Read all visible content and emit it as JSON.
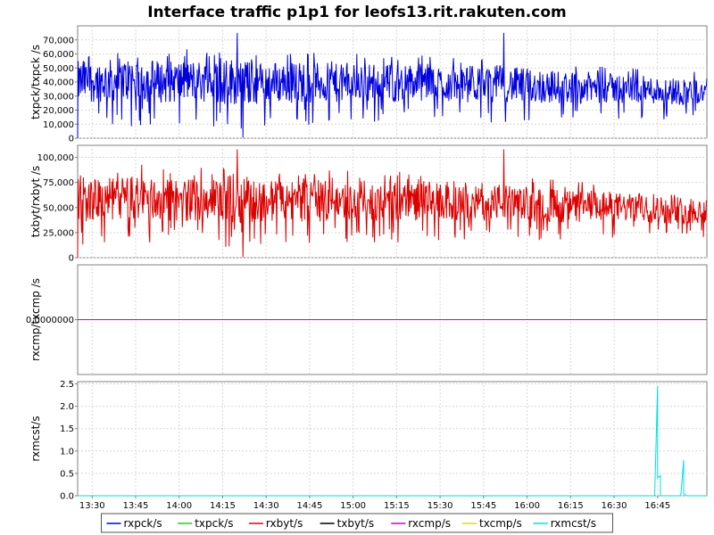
{
  "chart_data": {
    "type": "line",
    "title": "Interface traffic p1p1 for leofs13.rit.rakuten.com",
    "x_range": [
      "13:25",
      "17:02"
    ],
    "x_ticks": [
      "13:30",
      "13:45",
      "14:00",
      "14:15",
      "14:30",
      "14:45",
      "15:00",
      "15:15",
      "15:30",
      "15:45",
      "16:00",
      "16:15",
      "16:30",
      "16:45"
    ],
    "grid": true,
    "legend_position": "bottom-center",
    "legend": [
      {
        "name": "rxpck/s",
        "color": "#0000dd"
      },
      {
        "name": "txpck/s",
        "color": "#22cc22"
      },
      {
        "name": "rxbyt/s",
        "color": "#dd0000"
      },
      {
        "name": "txbyt/s",
        "color": "#000000"
      },
      {
        "name": "rxcmp/s",
        "color": "#cc00cc"
      },
      {
        "name": "txcmp/s",
        "color": "#dddd00"
      },
      {
        "name": "rxmcst/s",
        "color": "#00dddd"
      }
    ],
    "panels": [
      {
        "ylabel": "txpck/txpck /s",
        "ylim": [
          0,
          80000
        ],
        "y_ticks": [
          0,
          10000,
          20000,
          30000,
          40000,
          50000,
          60000,
          70000
        ],
        "y_tick_labels": [
          "0",
          "10,000",
          "20,000",
          "30,000",
          "40,000",
          "50,000",
          "60,000",
          "70,000"
        ],
        "series": [
          {
            "name": "rxpck/s",
            "color": "#0000dd",
            "x": [
              "13:25",
              "13:35",
              "13:45",
              "13:55",
              "14:05",
              "14:15",
              "14:20",
              "14:25",
              "14:35",
              "14:45",
              "14:55",
              "15:05",
              "15:15",
              "15:25",
              "15:35",
              "15:45",
              "15:50",
              "15:55",
              "16:05",
              "16:15",
              "16:25",
              "16:35",
              "16:45",
              "16:55",
              "17:02"
            ],
            "mean": [
              40000,
              41000,
              42000,
              40000,
              41000,
              40000,
              41000,
              39000,
              40000,
              40000,
              39000,
              40000,
              39000,
              40000,
              38000,
              38000,
              39000,
              38000,
              37000,
              36000,
              36000,
              35000,
              34000,
              33000,
              33000
            ],
            "amp": [
              12000,
              12000,
              13000,
              12000,
              12000,
              13000,
              14000,
              12000,
              12000,
              12000,
              11000,
              11000,
              11000,
              11000,
              10000,
              10000,
              11000,
              10000,
              10000,
              9000,
              9000,
              8000,
              8000,
              8000,
              8000
            ],
            "peaks": [
              [
                "13:25",
                0
              ],
              [
                "13:27",
                55000
              ],
              [
                "14:20",
                75000
              ],
              [
                "14:22",
                500
              ],
              [
                "15:52",
                75000
              ],
              [
                "13:37",
                10000
              ]
            ]
          }
        ]
      },
      {
        "ylabel": "txbyt/rxbyt /s",
        "ylim": [
          0,
          112000
        ],
        "y_ticks": [
          0,
          25000,
          50000,
          75000,
          100000
        ],
        "y_tick_labels": [
          "0",
          "25,000",
          "50,000",
          "75,000",
          "100,000"
        ],
        "series": [
          {
            "name": "rxbyt/s",
            "color": "#dd0000",
            "x": [
              "13:25",
              "13:35",
              "13:45",
              "13:55",
              "14:05",
              "14:15",
              "14:20",
              "14:25",
              "14:35",
              "14:45",
              "14:55",
              "15:05",
              "15:15",
              "15:25",
              "15:35",
              "15:45",
              "15:50",
              "15:55",
              "16:05",
              "16:15",
              "16:25",
              "16:35",
              "16:45",
              "16:55",
              "17:02"
            ],
            "mean": [
              57000,
              58000,
              60000,
              57000,
              58000,
              58000,
              60000,
              56000,
              57000,
              57000,
              56000,
              57000,
              56000,
              57000,
              54000,
              54000,
              56000,
              54000,
              53000,
              51000,
              51000,
              50000,
              48000,
              47000,
              47000
            ],
            "amp": [
              17000,
              17000,
              18000,
              17000,
              17000,
              18000,
              20000,
              17000,
              17000,
              17000,
              16000,
              16000,
              16000,
              16000,
              14000,
              14000,
              15000,
              14000,
              14000,
              13000,
              13000,
              11000,
              11000,
              11000,
              11000
            ],
            "peaks": [
              [
                "13:25",
                0
              ],
              [
                "13:27",
                80000
              ],
              [
                "14:20",
                108000
              ],
              [
                "14:22",
                500
              ],
              [
                "15:52",
                108000
              ]
            ]
          }
        ]
      },
      {
        "ylabel": "rxcmp/txcmp /s",
        "ylim": [
          -1,
          1
        ],
        "y_ticks": [
          0
        ],
        "y_tick_labels": [
          "0.0000000"
        ],
        "series": [
          {
            "name": "rxcmp/s",
            "color": "#cc00cc",
            "x": [
              "13:25",
              "17:02"
            ],
            "values": [
              0,
              0
            ]
          }
        ]
      },
      {
        "ylabel": "rxmcst/s",
        "ylim": [
          0,
          2.55
        ],
        "y_ticks": [
          0,
          0.5,
          1.0,
          1.5,
          2.0,
          2.5
        ],
        "y_tick_labels": [
          "0.0",
          "0.5",
          "1.0",
          "1.5",
          "2.0",
          "2.5"
        ],
        "series": [
          {
            "name": "rxmcst/s",
            "color": "#00dddd",
            "x": [
              "13:25",
              "16:44",
              "16:45",
              "16:45",
              "16:46",
              "16:46",
              "16:48",
              "16:53",
              "16:54",
              "16:54",
              "16:55",
              "17:02"
            ],
            "values": [
              0,
              0,
              2.45,
              0.4,
              0.45,
              0,
              0,
              0,
              0.8,
              0.05,
              0,
              0
            ]
          }
        ]
      }
    ]
  }
}
